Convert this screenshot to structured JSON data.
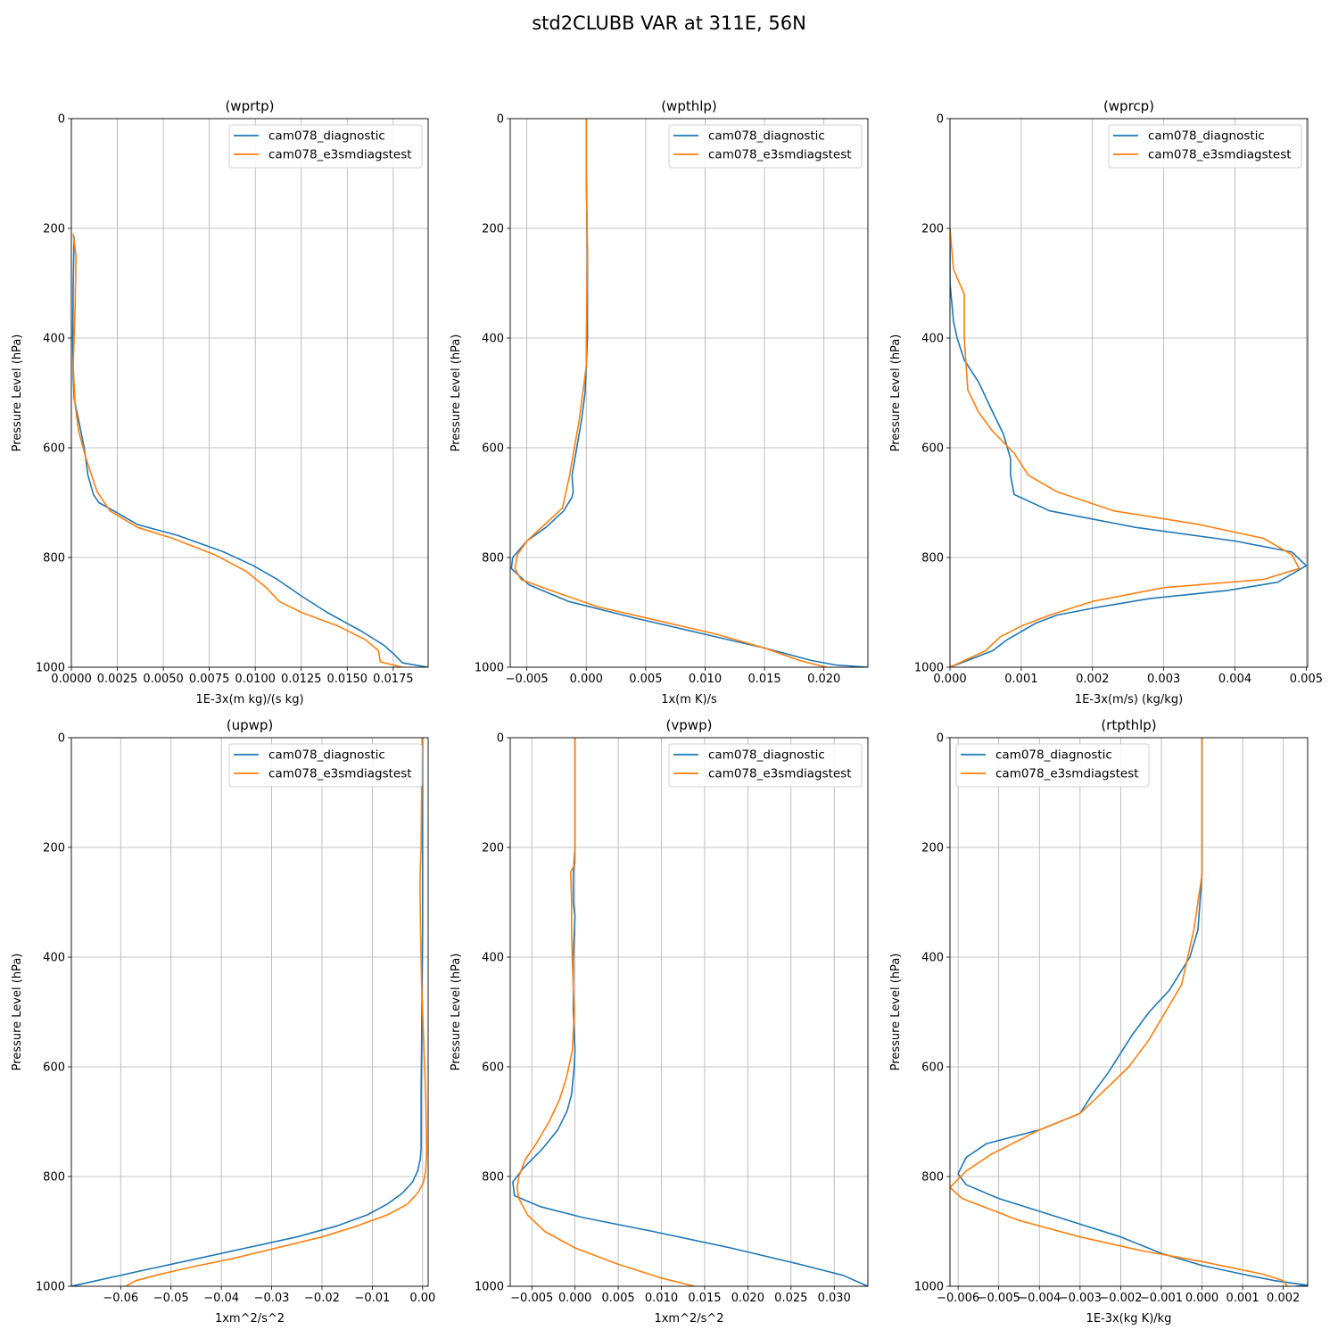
{
  "figure": {
    "title": "std2CLUBB VAR at 311E, 56N"
  },
  "legend_labels": [
    "cam078_diagnostic",
    "cam078_e3smdiagstest"
  ],
  "colors": {
    "series1": "#1f77b4",
    "series2": "#ff7f0e",
    "grid": "#b0b0b0"
  },
  "chart_data": [
    {
      "type": "line",
      "title": "(wprtp)",
      "xlabel": "1E-3x(m kg)/(s kg)",
      "ylabel": "Pressure Level (hPa)",
      "xlim": [
        0,
        0.0194
      ],
      "ylim": [
        1000,
        0
      ],
      "xticks": [
        0,
        0.0025,
        0.005,
        0.0075,
        0.01,
        0.0125,
        0.015,
        0.0175
      ],
      "xtick_labels": [
        "0.0000",
        "0.0025",
        "0.0050",
        "0.0075",
        "0.0100",
        "0.0125",
        "0.0150",
        "0.0175"
      ],
      "yticks": [
        0,
        200,
        400,
        600,
        800,
        1000
      ],
      "ytick_labels": [
        "0",
        "200",
        "400",
        "600",
        "800",
        "1000"
      ],
      "legend_loc": "top-right",
      "grid": true,
      "series": [
        {
          "name": "cam078_diagnostic",
          "x": [
            0.00015,
            0.0001,
            8e-05,
            0.0001,
            0.00015,
            0.0004,
            0.0007,
            0.0009,
            0.0012,
            0.0015,
            0.0023,
            0.0036,
            0.0058,
            0.0083,
            0.0099,
            0.0112,
            0.0125,
            0.0139,
            0.0158,
            0.017,
            0.0175,
            0.018,
            0.0194
          ],
          "y": [
            215,
            300,
            400,
            470,
            510,
            550,
            600,
            650,
            685,
            700,
            715,
            740,
            760,
            790,
            815,
            840,
            870,
            900,
            935,
            960,
            975,
            992,
            1000
          ]
        },
        {
          "name": "cam078_e3smdiagstest",
          "x": [
            0.0001,
            0.00025,
            0.0002,
            0.0001,
            0.0002,
            0.0004,
            0.0008,
            0.0011,
            0.0014,
            0.0018,
            0.0021,
            0.0036,
            0.0055,
            0.0078,
            0.0095,
            0.0106,
            0.0113,
            0.0125,
            0.0145,
            0.016,
            0.0167,
            0.0168,
            0.018
          ],
          "y": [
            210,
            250,
            350,
            450,
            520,
            570,
            620,
            650,
            680,
            700,
            715,
            745,
            765,
            795,
            825,
            855,
            880,
            900,
            925,
            950,
            970,
            990,
            1000
          ]
        }
      ]
    },
    {
      "type": "line",
      "title": "(wpthlp)",
      "xlabel": "1x(m K)/s",
      "ylabel": "Pressure Level (hPa)",
      "xlim": [
        -0.0064,
        0.0237
      ],
      "ylim": [
        1000,
        0
      ],
      "xticks": [
        -0.005,
        0,
        0.005,
        0.01,
        0.015,
        0.02
      ],
      "xtick_labels": [
        "−0.005",
        "0.000",
        "0.005",
        "0.010",
        "0.015",
        "0.020"
      ],
      "yticks": [
        0,
        200,
        400,
        600,
        800,
        1000
      ],
      "ytick_labels": [
        "0",
        "200",
        "400",
        "600",
        "800",
        "1000"
      ],
      "legend_loc": "top-right",
      "grid": true,
      "series": [
        {
          "name": "cam078_diagnostic",
          "x": [
            0.0,
            0.0,
            0.0001,
            0.0001,
            0.0,
            -0.0001,
            -0.0004,
            -0.0008,
            -0.0012,
            -0.0011,
            -0.0012,
            -0.0019,
            -0.0034,
            -0.005,
            -0.0062,
            -0.0063,
            -0.0048,
            -0.0015,
            0.004,
            0.01,
            0.015,
            0.019,
            0.021,
            0.0237
          ],
          "y": [
            0,
            100,
            250,
            400,
            450,
            500,
            550,
            600,
            650,
            680,
            690,
            715,
            745,
            770,
            800,
            820,
            850,
            880,
            910,
            940,
            965,
            988,
            996,
            1000
          ]
        },
        {
          "name": "cam078_e3smdiagstest",
          "x": [
            0.0,
            0.0,
            0.0001,
            0.0,
            0.0,
            -0.0003,
            -0.0006,
            -0.001,
            -0.0014,
            -0.002,
            -0.0035,
            -0.005,
            -0.0058,
            -0.006,
            -0.0055,
            -0.003,
            0.001,
            0.006,
            0.011,
            0.015,
            0.018,
            0.0202
          ],
          "y": [
            0,
            100,
            250,
            400,
            450,
            500,
            550,
            600,
            650,
            710,
            740,
            770,
            795,
            820,
            840,
            860,
            890,
            915,
            940,
            965,
            988,
            1000
          ]
        }
      ]
    },
    {
      "type": "line",
      "title": "(wprcp)",
      "xlabel": "1E-3x(m/s) (kg/kg)",
      "ylabel": "Pressure Level (hPa)",
      "xlim": [
        0,
        0.00502
      ],
      "ylim": [
        1000,
        0
      ],
      "xticks": [
        0,
        0.001,
        0.002,
        0.003,
        0.004,
        0.005
      ],
      "xtick_labels": [
        "0.000",
        "0.001",
        "0.002",
        "0.003",
        "0.004",
        "0.005"
      ],
      "yticks": [
        0,
        200,
        400,
        600,
        800,
        1000
      ],
      "ytick_labels": [
        "0",
        "200",
        "400",
        "600",
        "800",
        "1000"
      ],
      "legend_loc": "top-right",
      "grid": true,
      "series": [
        {
          "name": "cam078_diagnostic",
          "x": [
            0,
            0.0,
            5e-05,
            0.0001,
            0.0002,
            0.0004,
            0.0006,
            0.00075,
            0.00085,
            0.00085,
            0.0009,
            0.0014,
            0.0026,
            0.004,
            0.0048,
            0.005,
            0.0046,
            0.0039,
            0.0028,
            0.0021,
            0.0015,
            0.0012,
            0.001,
            0.0008,
            0.0006,
            0.0003,
            0.0
          ],
          "y": [
            200,
            300,
            370,
            400,
            440,
            480,
            535,
            575,
            620,
            650,
            685,
            715,
            745,
            770,
            790,
            815,
            845,
            860,
            875,
            890,
            905,
            920,
            935,
            950,
            970,
            985,
            1000
          ]
        },
        {
          "name": "cam078_e3smdiagstest",
          "x": [
            0,
            5e-05,
            0.0002,
            0.0002,
            0.0002,
            0.00025,
            0.0004,
            0.0006,
            0.0009,
            0.0011,
            0.0015,
            0.0023,
            0.0035,
            0.0044,
            0.0048,
            0.0049,
            0.0044,
            0.003,
            0.002,
            0.0014,
            0.001,
            0.0007,
            0.0005,
            0.0
          ],
          "y": [
            200,
            275,
            320,
            350,
            400,
            495,
            535,
            570,
            610,
            650,
            680,
            715,
            740,
            765,
            795,
            820,
            840,
            855,
            880,
            905,
            925,
            945,
            970,
            1000
          ]
        }
      ]
    },
    {
      "type": "line",
      "title": "(upwp)",
      "xlabel": "1xm^2/s^2",
      "ylabel": "Pressure Level (hPa)",
      "xlim": [
        -0.0698,
        0.0011
      ],
      "ylim": [
        1000,
        0
      ],
      "xticks": [
        -0.06,
        -0.05,
        -0.04,
        -0.03,
        -0.02,
        -0.01,
        0.0
      ],
      "xtick_labels": [
        "−0.06",
        "−0.05",
        "−0.04",
        "−0.03",
        "−0.02",
        "−0.01",
        "0.00"
      ],
      "yticks": [
        0,
        200,
        400,
        600,
        800,
        1000
      ],
      "ytick_labels": [
        "0",
        "200",
        "400",
        "600",
        "800",
        "1000"
      ],
      "legend_loc": "top-right",
      "grid": true,
      "series": [
        {
          "name": "cam078_diagnostic",
          "x": [
            0.0,
            0.0,
            0.0,
            -0.0001,
            -0.0002,
            -0.0003,
            -0.0003,
            -0.0005,
            -0.001,
            -0.002,
            -0.004,
            -0.007,
            -0.011,
            -0.017,
            -0.025,
            -0.035,
            -0.045,
            -0.055,
            -0.0698
          ],
          "y": [
            0,
            200,
            350,
            450,
            550,
            650,
            750,
            770,
            790,
            810,
            830,
            850,
            870,
            890,
            910,
            930,
            950,
            970,
            1000
          ]
        },
        {
          "name": "cam078_e3smdiagstest",
          "x": [
            -0.0001,
            -0.0003,
            -0.0005,
            -0.0005,
            -0.0004,
            -0.0002,
            0.0002,
            0.0006,
            0.0008,
            0.0006,
            0.0002,
            -0.001,
            -0.003,
            -0.007,
            -0.013,
            -0.02,
            -0.029,
            -0.038,
            -0.046,
            -0.053,
            -0.057,
            -0.059
          ],
          "y": [
            0,
            200,
            250,
            290,
            350,
            450,
            550,
            650,
            750,
            790,
            810,
            830,
            850,
            870,
            890,
            910,
            930,
            950,
            965,
            980,
            990,
            1000
          ]
        }
      ]
    },
    {
      "type": "line",
      "title": "(vpwp)",
      "xlabel": "1xm^2/s^2",
      "ylabel": "Pressure Level (hPa)",
      "xlim": [
        -0.0075,
        0.0339
      ],
      "ylim": [
        1000,
        0
      ],
      "xticks": [
        -0.005,
        0,
        0.005,
        0.01,
        0.015,
        0.02,
        0.025,
        0.03
      ],
      "xtick_labels": [
        "−0.005",
        "0.000",
        "0.005",
        "0.010",
        "0.015",
        "0.020",
        "0.025",
        "0.030"
      ],
      "yticks": [
        0,
        200,
        400,
        600,
        800,
        1000
      ],
      "ytick_labels": [
        "0",
        "200",
        "400",
        "600",
        "800",
        "1000"
      ],
      "legend_loc": "top-right",
      "grid": true,
      "series": [
        {
          "name": "cam078_diagnostic",
          "x": [
            0.0,
            0.0,
            0.0,
            -0.0002,
            -0.0002,
            0.0,
            -0.0002,
            -0.0002,
            0.0,
            -0.0001,
            -0.0004,
            -0.0009,
            -0.002,
            -0.0038,
            -0.006,
            -0.0072,
            -0.007,
            -0.004,
            0.001,
            0.009,
            0.018,
            0.026,
            0.031,
            0.0339
          ],
          "y": [
            0,
            170,
            200,
            250,
            300,
            325,
            400,
            500,
            570,
            600,
            650,
            680,
            715,
            750,
            785,
            810,
            835,
            855,
            875,
            900,
            930,
            960,
            980,
            1000
          ]
        },
        {
          "name": "cam078_e3smdiagstest",
          "x": [
            0.0,
            0.0,
            0.0,
            -0.0005,
            -0.0004,
            -0.0004,
            -0.0003,
            -0.0001,
            -0.0003,
            -0.001,
            -0.0018,
            -0.003,
            -0.0045,
            -0.0058,
            -0.0065,
            -0.0067,
            -0.0065,
            -0.0055,
            -0.0035,
            0.0,
            0.005,
            0.01,
            0.0138
          ],
          "y": [
            0,
            150,
            230,
            245,
            300,
            350,
            410,
            500,
            570,
            620,
            660,
            700,
            740,
            770,
            800,
            820,
            840,
            870,
            900,
            930,
            960,
            985,
            1000
          ]
        }
      ]
    },
    {
      "type": "line",
      "title": "(rtpthlp)",
      "xlabel": "1E-3x(kg K)/kg",
      "ylabel": "Pressure Level (hPa)",
      "xlim": [
        -0.0062,
        0.0026
      ],
      "ylim": [
        1000,
        0
      ],
      "xticks": [
        -0.006,
        -0.005,
        -0.004,
        -0.003,
        -0.002,
        -0.001,
        0.0,
        0.001,
        0.002
      ],
      "xtick_labels": [
        "−0.006",
        "−0.005",
        "−0.004",
        "−0.003",
        "−0.002",
        "−0.001",
        "0.000",
        "0.001",
        "0.002"
      ],
      "yticks": [
        0,
        200,
        400,
        600,
        800,
        1000
      ],
      "ytick_labels": [
        "0",
        "200",
        "400",
        "600",
        "800",
        "1000"
      ],
      "legend_loc": "top-left",
      "grid": true,
      "series": [
        {
          "name": "cam078_diagnostic",
          "x": [
            0.0,
            0.0,
            0.0,
            -0.0001,
            -0.0003,
            -0.0008,
            -0.0013,
            -0.0017,
            -0.002,
            -0.0023,
            -0.0027,
            -0.003,
            -0.004,
            -0.0053,
            -0.0058,
            -0.006,
            -0.0058,
            -0.005,
            -0.0035,
            -0.002,
            -0.001,
            0.0,
            0.001,
            0.0018,
            0.0026,
            0.0023
          ],
          "y": [
            0,
            150,
            250,
            350,
            400,
            460,
            500,
            540,
            575,
            610,
            650,
            685,
            715,
            740,
            765,
            795,
            815,
            840,
            875,
            910,
            940,
            962,
            978,
            990,
            998,
            1000
          ]
        },
        {
          "name": "cam078_e3smdiagstest",
          "x": [
            0.0,
            0.0,
            0.0,
            -0.0002,
            -0.0005,
            -0.0009,
            -0.0013,
            -0.0018,
            -0.0025,
            -0.003,
            -0.004,
            -0.0052,
            -0.0058,
            -0.0062,
            -0.0059,
            -0.0045,
            -0.003,
            -0.0015,
            0.0,
            0.0015,
            0.002,
            0.0021
          ],
          "y": [
            0,
            150,
            250,
            350,
            450,
            500,
            550,
            600,
            650,
            685,
            715,
            760,
            790,
            820,
            840,
            880,
            910,
            935,
            955,
            978,
            990,
            1000
          ]
        }
      ]
    }
  ]
}
